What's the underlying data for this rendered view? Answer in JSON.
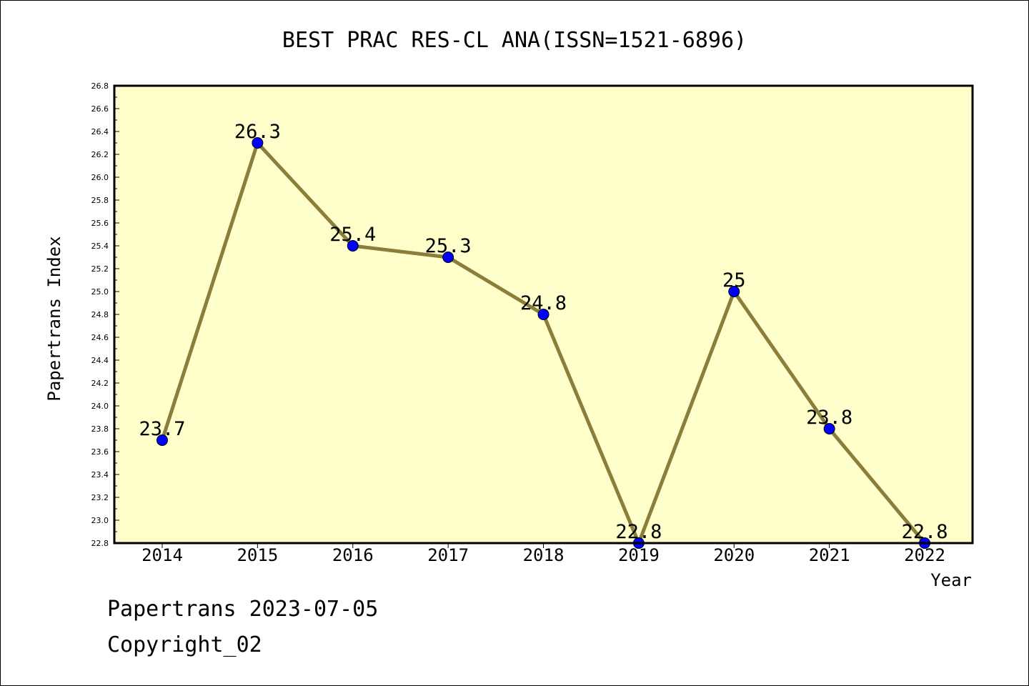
{
  "chart_data": {
    "type": "line",
    "title": "BEST PRAC RES-CL ANA(ISSN=1521-6896)",
    "xlabel": "Year",
    "ylabel": "Papertrans Index",
    "categories": [
      "2014",
      "2015",
      "2016",
      "2017",
      "2018",
      "2019",
      "2020",
      "2021",
      "2022"
    ],
    "values": [
      23.7,
      26.3,
      25.4,
      25.3,
      24.8,
      22.8,
      25.0,
      23.8,
      22.8
    ],
    "point_labels": [
      "23.7",
      "26.3",
      "25.4",
      "25.3",
      "24.8",
      "22.8",
      "25",
      "23.8",
      "22.8"
    ],
    "ylim": [
      22.8,
      26.8
    ],
    "yticks": [
      "22.8",
      "23.0",
      "23.2",
      "23.4",
      "23.6",
      "23.8",
      "24.0",
      "24.2",
      "24.4",
      "24.6",
      "24.8",
      "25.0",
      "25.2",
      "25.4",
      "25.6",
      "25.8",
      "26.0",
      "26.2",
      "26.4",
      "26.6",
      "26.8"
    ],
    "grid": false,
    "colors": {
      "plot_background": "#ffffcc",
      "line": "#8b7d3a",
      "marker": "#0000ff"
    }
  },
  "footer": {
    "line1": "Papertrans 2023-07-05",
    "line2": "Copyright_02"
  }
}
